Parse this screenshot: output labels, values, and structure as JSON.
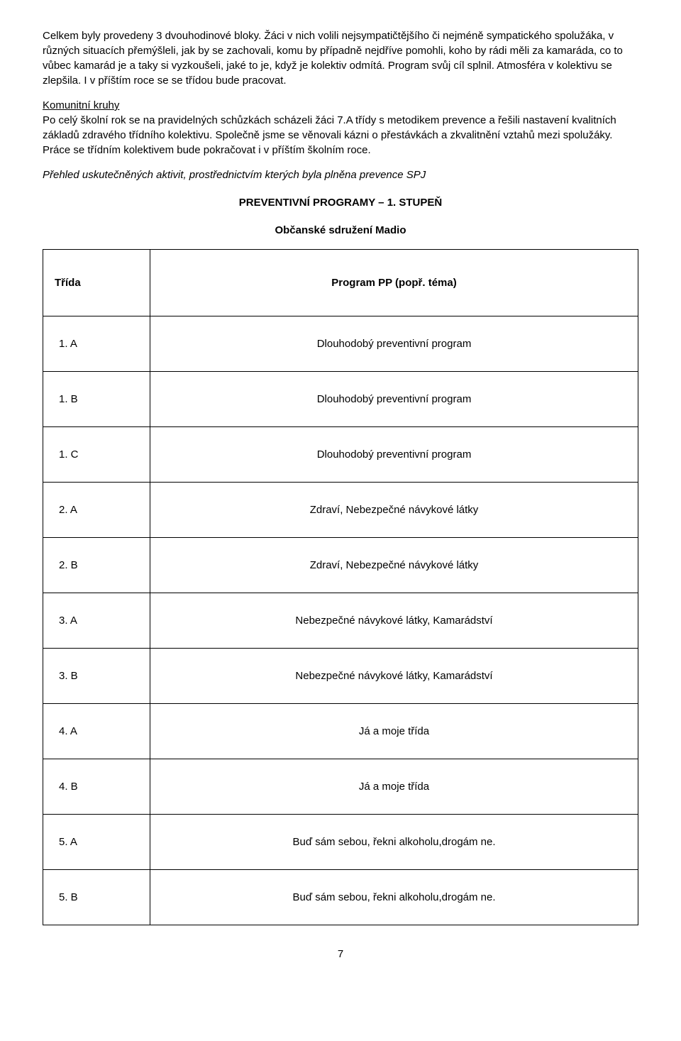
{
  "paragraphs": {
    "p1": "Celkem byly provedeny 3 dvouhodinové bloky. Žáci v nich volili nejsympatičtějšího či nejméně sympatického spolužáka, v různých situacích přemýšleli, jak by se zachovali, komu by případně nejdříve pomohli, koho by rádi měli za kamaráda, co to vůbec kamarád je a taky si vyzkoušeli, jaké to je, když je kolektiv odmítá. Program svůj cíl splnil. Atmosféra v kolektivu se zlepšila. I v příštím roce se se třídou bude pracovat.",
    "p2_heading": "Komunitní kruhy",
    "p2": "Po celý školní rok se na pravidelných schůzkách scházeli žáci 7.A třídy s metodikem prevence a řešili nastavení kvalitních základů zdravého třídního kolektivu. Společně jsme se věnovali kázni o přestávkách a zkvalitnění vztahů mezi spolužáky. Práce se třídním kolektivem bude pokračovat i v příštím školním roce.",
    "p3_italic": "Přehled uskutečněných aktivit, prostřednictvím kterých byla plněna prevence SPJ"
  },
  "headings": {
    "h1": "PREVENTIVNÍ PROGRAMY – 1. STUPEŇ",
    "h2": "Občanské sdružení Madio"
  },
  "table": {
    "header": {
      "col1": "Třída",
      "col2": "Program PP (popř. téma)"
    },
    "rows": [
      {
        "c1": "1. A",
        "c2": "Dlouhodobý preventivní program"
      },
      {
        "c1": "1. B",
        "c2": "Dlouhodobý preventivní program"
      },
      {
        "c1": "1. C",
        "c2": "Dlouhodobý preventivní program"
      },
      {
        "c1": "2. A",
        "c2": "Zdraví, Nebezpečné návykové látky"
      },
      {
        "c1": "2. B",
        "c2": "Zdraví, Nebezpečné návykové látky"
      },
      {
        "c1": "3. A",
        "c2": "Nebezpečné návykové látky, Kamarádství"
      },
      {
        "c1": "3. B",
        "c2": "Nebezpečné návykové látky, Kamarádství"
      },
      {
        "c1": "4. A",
        "c2": "Já a moje třída"
      },
      {
        "c1": "4. B",
        "c2": "Já a moje třída"
      },
      {
        "c1": "5. A",
        "c2": "Buď sám sebou, řekni alkoholu,drogám ne."
      },
      {
        "c1": "5. B",
        "c2": "Buď sám sebou, řekni alkoholu,drogám ne."
      }
    ]
  },
  "page_number": "7"
}
